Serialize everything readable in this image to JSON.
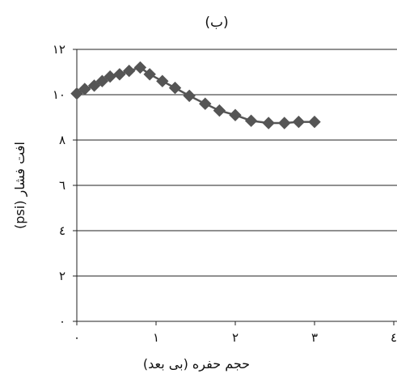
{
  "chart_data": {
    "type": "line",
    "title": "(ب)",
    "xlabel": "حجم حفره (بی بعد)",
    "ylabel": "افت فشار (psi)",
    "xlim": [
      0,
      4
    ],
    "ylim": [
      0,
      12
    ],
    "x_tick_labels": [
      "۰",
      "۱",
      "۲",
      "۳",
      "٤"
    ],
    "y_tick_labels": [
      "۰",
      "۲",
      "٤",
      "٦",
      "۸",
      "۱۰",
      "۱۲"
    ],
    "x_ticks": [
      0,
      1,
      2,
      3,
      4
    ],
    "y_ticks": [
      0,
      2,
      4,
      6,
      8,
      10,
      12
    ],
    "grid": "horizontal",
    "series": [
      {
        "color": "#555555",
        "marker": "diamond",
        "x": [
          0.0,
          0.1,
          0.22,
          0.32,
          0.42,
          0.54,
          0.66,
          0.8,
          0.92,
          1.08,
          1.24,
          1.42,
          1.62,
          1.8,
          2.0,
          2.2,
          2.42,
          2.62,
          2.8,
          3.0
        ],
        "y": [
          10.05,
          10.25,
          10.4,
          10.6,
          10.8,
          10.9,
          11.05,
          11.2,
          10.9,
          10.6,
          10.3,
          9.95,
          9.6,
          9.3,
          9.1,
          8.85,
          8.75,
          8.75,
          8.8,
          8.8
        ]
      }
    ]
  }
}
